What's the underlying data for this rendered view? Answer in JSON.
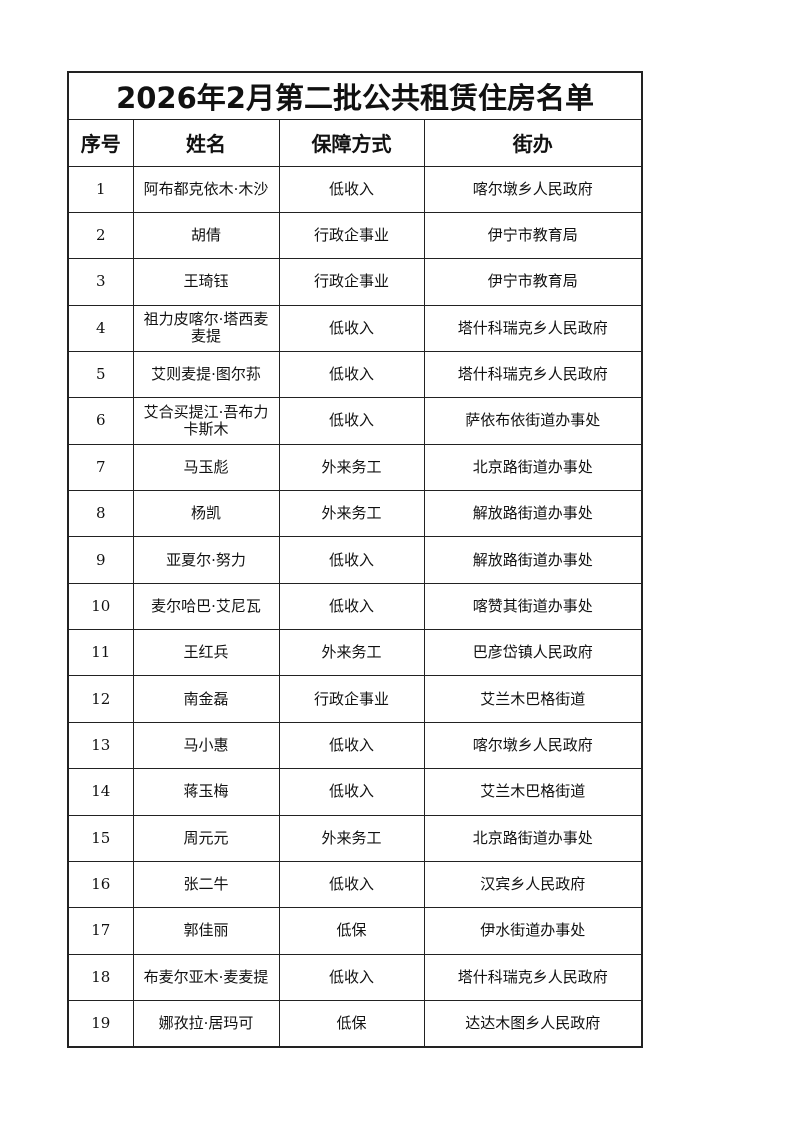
{
  "title": "2026年2月第二批公共租赁住房名单",
  "headers": [
    "序号",
    "姓名",
    "保障方式",
    "街办"
  ],
  "rows": [
    [
      "1",
      "阿布都克依木·木沙",
      "低收入",
      "喀尔墩乡人民政府"
    ],
    [
      "2",
      "胡倩",
      "行政企事业",
      "伊宁市教育局"
    ],
    [
      "3",
      "王琦钰",
      "行政企事业",
      "伊宁市教育局"
    ],
    [
      "4",
      "祖力皮喀尔·塔西麦麦提",
      "低收入",
      "塔什科瑞克乡人民政府"
    ],
    [
      "5",
      "艾则麦提·图尔荪",
      "低收入",
      "塔什科瑞克乡人民政府"
    ],
    [
      "6",
      "艾合买提江·吾布力卡斯木",
      "低收入",
      "萨依布依街道办事处"
    ],
    [
      "7",
      "马玉彪",
      "外来务工",
      "北京路街道办事处"
    ],
    [
      "8",
      "杨凯",
      "外来务工",
      "解放路街道办事处"
    ],
    [
      "9",
      "亚夏尔·努力",
      "低收入",
      "解放路街道办事处"
    ],
    [
      "10",
      "麦尔哈巴·艾尼瓦",
      "低收入",
      "喀赞其街道办事处"
    ],
    [
      "11",
      "王红兵",
      "外来务工",
      "巴彦岱镇人民政府"
    ],
    [
      "12",
      "南金磊",
      "行政企事业",
      "艾兰木巴格街道"
    ],
    [
      "13",
      "马小惠",
      "低收入",
      "喀尔墩乡人民政府"
    ],
    [
      "14",
      "蒋玉梅",
      "低收入",
      "艾兰木巴格街道"
    ],
    [
      "15",
      "周元元",
      "外来务工",
      "北京路街道办事处"
    ],
    [
      "16",
      "张二牛",
      "低收入",
      "汉宾乡人民政府"
    ],
    [
      "17",
      "郭佳丽",
      "低保",
      "伊水街道办事处"
    ],
    [
      "18",
      "布麦尔亚木·麦麦提",
      "低收入",
      "塔什科瑞克乡人民政府"
    ],
    [
      "19",
      "娜孜拉·居玛可",
      "低保",
      "达达木图乡人民政府"
    ]
  ]
}
